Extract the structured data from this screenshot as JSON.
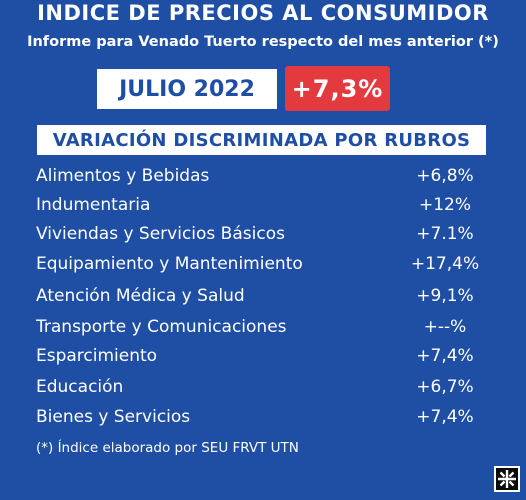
{
  "header": {
    "title": "INDICE DE PRECIOS AL CONSUMIDOR",
    "subtitle": "Informe para Venado Tuerto respecto del mes anterior (*)"
  },
  "period": {
    "month": "JULIO 2022",
    "total_change": "+7,3%"
  },
  "section": {
    "title": "VARIACIÓN DISCRIMINADA POR RUBROS"
  },
  "rubros": [
    {
      "label": "Alimentos y Bebidas",
      "value": "+6,8%"
    },
    {
      "label": "Indumentaria",
      "value": "+12%"
    },
    {
      "label": "Viviendas y Servicios Básicos",
      "value": "+7.1%"
    },
    {
      "label": "Equipamiento y Mantenimiento",
      "value": "+17,4%"
    },
    {
      "label": "Atención Médica y Salud",
      "value": "+9,1%"
    },
    {
      "label": "Transporte y Comunicaciones",
      "value": "+--%"
    },
    {
      "label": "Esparcimiento",
      "value": "+7,4%"
    },
    {
      "label": "Educación",
      "value": "+6,7%"
    },
    {
      "label": "Bienes y Servicios",
      "value": "+7,4%"
    }
  ],
  "footnote": "(*) Índice elaborado por SEU FRVT UTN",
  "logo_icon": "utn-logo-icon",
  "colors": {
    "background": "#1f4ea5",
    "accent_red": "#e23a3f",
    "box_white": "#ffffff"
  }
}
